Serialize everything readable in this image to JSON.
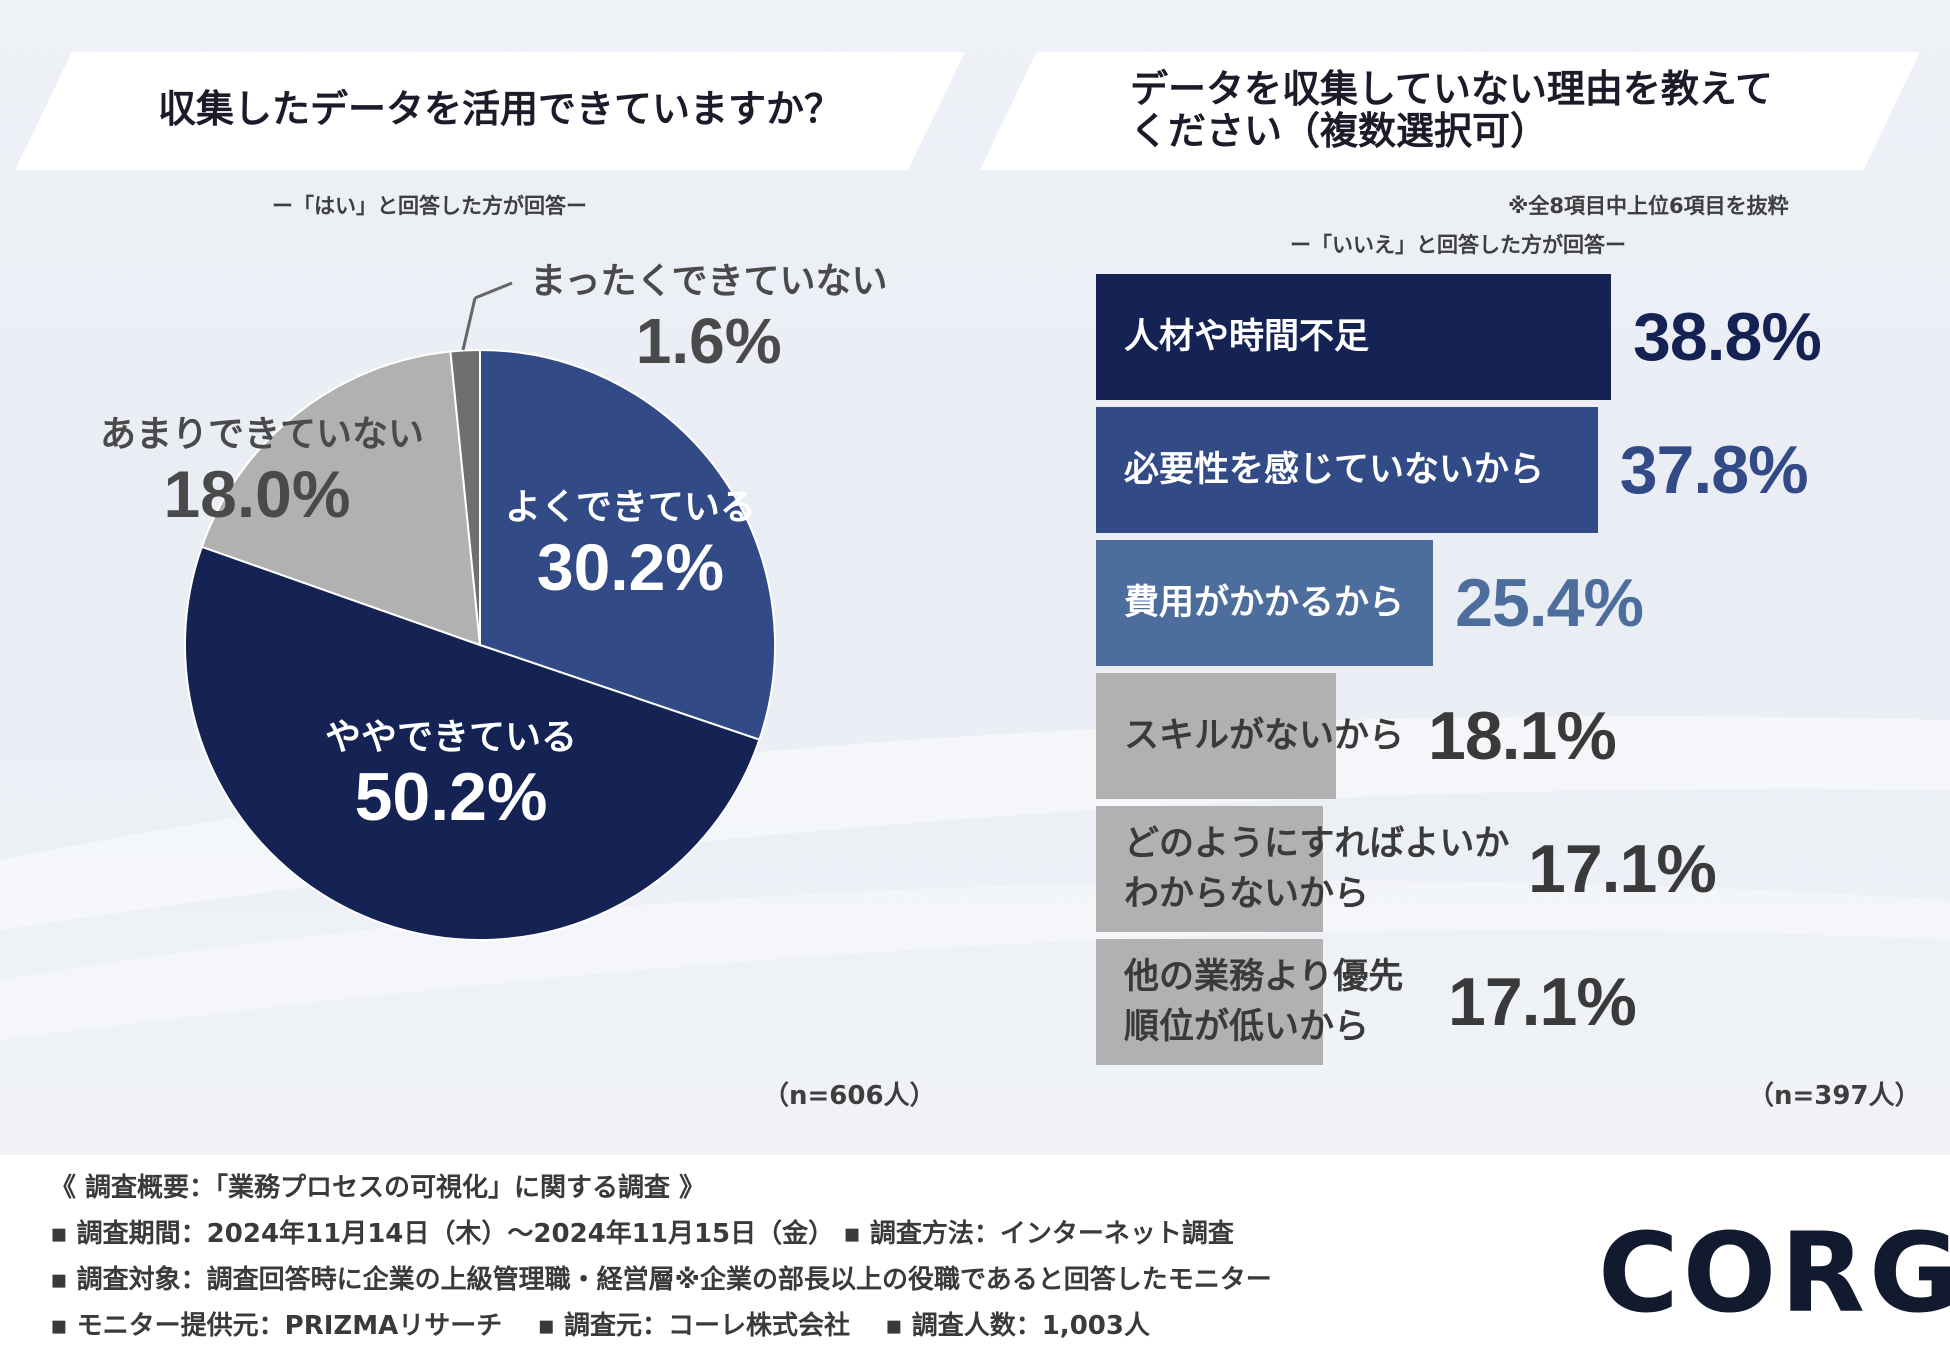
{
  "left_chart": {
    "title": "収集したデータを活用できていますか？",
    "subtitle": "ー「はい」と回答した方が回答ー",
    "sample": "（n=606人）"
  },
  "right_chart": {
    "title_line1": "データを収集していない理由を教えて",
    "title_line2": "ください（複数選択可）",
    "note": "※全8項目中上位6項目を抜粋",
    "subtitle": "ー「いいえ」と回答した方が回答ー",
    "sample": "（n=397人）"
  },
  "chart_data": [
    {
      "type": "pie",
      "title": "収集したデータを活用できていますか？",
      "categories": [
        "よくできている",
        "ややできている",
        "あまりできていない",
        "まったくできていない"
      ],
      "values": [
        30.2,
        50.2,
        18.0,
        1.6
      ],
      "value_labels": [
        "30.2%",
        "50.2%",
        "18.0%",
        "1.6%"
      ],
      "colors": [
        "#324a86",
        "#142353",
        "#b1b1b1",
        "#6f6f6f"
      ],
      "start": "12 o'clock, clockwise"
    },
    {
      "type": "bar",
      "orientation": "horizontal",
      "title": "データを収集していない理由を教えてください（複数選択可）",
      "categories": [
        "人材や時間不足",
        "必要性を感じていないから",
        "費用がかかるから",
        "スキルがないから",
        "どのようにすればよいかわからないから",
        "他の業務より優先順位が低いから"
      ],
      "category_lines": [
        [
          "人材や時間不足"
        ],
        [
          "必要性を感じていないから"
        ],
        [
          "費用がかかるから"
        ],
        [
          "スキルがないから"
        ],
        [
          "どのようにすればよいか",
          "わからないから"
        ],
        [
          "他の業務より優先",
          "順位が低いから"
        ]
      ],
      "values": [
        38.8,
        37.8,
        25.4,
        18.1,
        17.1,
        17.1
      ],
      "value_labels": [
        "38.8%",
        "37.8%",
        "25.4%",
        "18.1%",
        "17.1%",
        "17.1%"
      ],
      "bar_colors": [
        "#142353",
        "#324a86",
        "#4d6d9c",
        "#b1b1b1",
        "#b1b1b1",
        "#b1b1b1"
      ],
      "label_colors": [
        "#ffffff",
        "#ffffff",
        "#ffffff",
        "#3a3a3a",
        "#3a3a3a",
        "#3a3a3a"
      ],
      "value_colors": [
        "#142353",
        "#324a86",
        "#4d6d9c",
        "#3a3a3a",
        "#3a3a3a",
        "#3a3a3a"
      ],
      "xlim": [
        0,
        38.8
      ]
    }
  ],
  "footer": {
    "overview": "《 調査概要：「業務プロセスの可視化」に関する調査 》",
    "line1": "▪ 調査期間：2024年11月14日（木）〜2024年11月15日（金） ▪ 調査方法：インターネット調査",
    "line2": "▪ 調査対象：調査回答時に企業の上級管理職・経営層※企業の部長以上の役職であると回答したモニター",
    "line3": "▪ モニター提供元：PRIZMAリサーチ　 ▪ 調査元：コーレ株式会社　 ▪ 調査人数：1,003人",
    "logo": "CORG"
  }
}
